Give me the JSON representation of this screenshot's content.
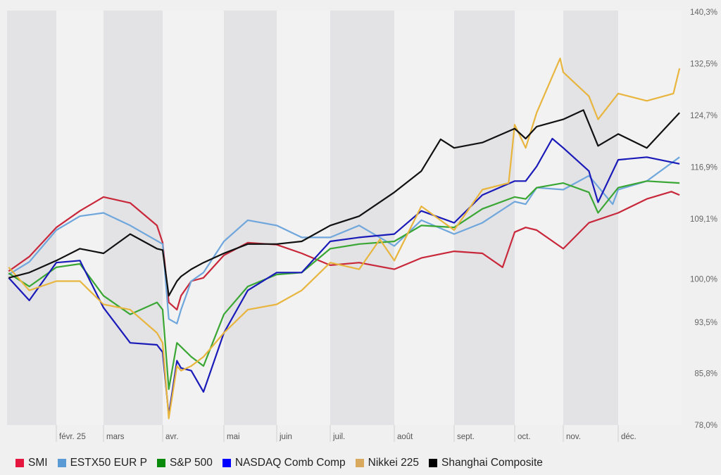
{
  "chart_data": {
    "type": "line",
    "title": "",
    "xlabel": "",
    "ylabel": "",
    "ylim": [
      78.0,
      140.3
    ],
    "y_ticks": [
      {
        "value": 140.3,
        "label": "140,3%"
      },
      {
        "value": 132.5,
        "label": "132,5%"
      },
      {
        "value": 124.7,
        "label": "124,7%"
      },
      {
        "value": 116.9,
        "label": "116,9%"
      },
      {
        "value": 109.1,
        "label": "109,1%"
      },
      {
        "value": 100.0,
        "label": "100,0%"
      },
      {
        "value": 93.5,
        "label": "93,5%"
      },
      {
        "value": 85.8,
        "label": "85,8%"
      },
      {
        "value": 78.0,
        "label": "78,0%"
      }
    ],
    "x_ticks": [
      {
        "date": "2025-02-01",
        "label": "févr. 25"
      },
      {
        "date": "2025-03-01",
        "label": "mars"
      },
      {
        "date": "2025-04-01",
        "label": "avr."
      },
      {
        "date": "2025-05-01",
        "label": "mai"
      },
      {
        "date": "2025-06-01",
        "label": "juin"
      },
      {
        "date": "2025-07-01",
        "label": "juil."
      },
      {
        "date": "2025-08-01",
        "label": "août"
      },
      {
        "date": "2025-09-01",
        "label": "sept."
      },
      {
        "date": "2025-10-01",
        "label": "oct."
      },
      {
        "date": "2025-11-01",
        "label": "nov."
      },
      {
        "date": "2025-12-01",
        "label": "déc."
      }
    ],
    "shaded_months": [
      "2025-01",
      "2025-03",
      "2025-05",
      "2025-07",
      "2025-09",
      "2025-11"
    ],
    "grid": false,
    "legend_position": "bottom",
    "series": [
      {
        "name": "SMI",
        "color": "#c8283a",
        "legend_color": "#e5173f",
        "points": [
          [
            "2025-01-02",
            101.2
          ],
          [
            "2025-01-15",
            103.4
          ],
          [
            "2025-02-01",
            107.8
          ],
          [
            "2025-02-15",
            110.3
          ],
          [
            "2025-03-01",
            112.4
          ],
          [
            "2025-03-15",
            111.5
          ],
          [
            "2025-03-29",
            108.1
          ],
          [
            "2025-04-01",
            105.5
          ],
          [
            "2025-04-04",
            96.5
          ],
          [
            "2025-04-08",
            95.4
          ],
          [
            "2025-04-10",
            97.5
          ],
          [
            "2025-04-15",
            99.7
          ],
          [
            "2025-04-21",
            100.2
          ],
          [
            "2025-05-01",
            103.6
          ],
          [
            "2025-05-15",
            105.5
          ],
          [
            "2025-06-01",
            105.2
          ],
          [
            "2025-06-15",
            103.9
          ],
          [
            "2025-07-01",
            102.1
          ],
          [
            "2025-07-15",
            102.5
          ],
          [
            "2025-08-01",
            101.5
          ],
          [
            "2025-08-15",
            103.2
          ],
          [
            "2025-09-01",
            104.2
          ],
          [
            "2025-09-15",
            103.9
          ],
          [
            "2025-09-25",
            101.8
          ],
          [
            "2025-10-01",
            107.1
          ],
          [
            "2025-10-08",
            107.8
          ],
          [
            "2025-10-15",
            107.4
          ],
          [
            "2025-11-01",
            104.6
          ],
          [
            "2025-11-15",
            108.5
          ],
          [
            "2025-12-01",
            110.0
          ],
          [
            "2025-12-15",
            112.1
          ],
          [
            "2025-12-27",
            113.2
          ],
          [
            "2025-12-31",
            112.7
          ]
        ]
      },
      {
        "name": "ESTX50 EUR P",
        "color": "#6fa6dc",
        "legend_color": "#5b9bd5",
        "points": [
          [
            "2025-01-02",
            100.7
          ],
          [
            "2025-01-15",
            102.6
          ],
          [
            "2025-02-01",
            107.4
          ],
          [
            "2025-02-15",
            109.5
          ],
          [
            "2025-03-01",
            110.0
          ],
          [
            "2025-03-15",
            108.1
          ],
          [
            "2025-04-01",
            105.3
          ],
          [
            "2025-04-04",
            94.0
          ],
          [
            "2025-04-08",
            93.3
          ],
          [
            "2025-04-10",
            95.4
          ],
          [
            "2025-04-15",
            99.7
          ],
          [
            "2025-04-21",
            101.0
          ],
          [
            "2025-05-01",
            105.7
          ],
          [
            "2025-05-15",
            108.9
          ],
          [
            "2025-06-01",
            108.1
          ],
          [
            "2025-06-15",
            106.3
          ],
          [
            "2025-07-01",
            106.3
          ],
          [
            "2025-07-15",
            108.1
          ],
          [
            "2025-08-01",
            105.0
          ],
          [
            "2025-08-15",
            108.9
          ],
          [
            "2025-09-01",
            106.8
          ],
          [
            "2025-09-15",
            108.5
          ],
          [
            "2025-10-01",
            111.7
          ],
          [
            "2025-10-08",
            111.3
          ],
          [
            "2025-10-15",
            113.8
          ],
          [
            "2025-11-01",
            113.5
          ],
          [
            "2025-11-15",
            115.6
          ],
          [
            "2025-11-28",
            111.3
          ],
          [
            "2025-12-01",
            113.5
          ],
          [
            "2025-12-15",
            114.8
          ],
          [
            "2025-12-31",
            118.4
          ]
        ]
      },
      {
        "name": "S&P 500",
        "color": "#3aa634",
        "legend_color": "#0a8a0a",
        "points": [
          [
            "2025-01-02",
            100.9
          ],
          [
            "2025-01-15",
            98.9
          ],
          [
            "2025-02-01",
            101.8
          ],
          [
            "2025-02-15",
            102.3
          ],
          [
            "2025-03-01",
            97.5
          ],
          [
            "2025-03-15",
            94.7
          ],
          [
            "2025-03-29",
            96.5
          ],
          [
            "2025-04-01",
            95.4
          ],
          [
            "2025-04-04",
            83.4
          ],
          [
            "2025-04-08",
            90.4
          ],
          [
            "2025-04-10",
            89.8
          ],
          [
            "2025-04-15",
            88.3
          ],
          [
            "2025-04-21",
            86.9
          ],
          [
            "2025-05-01",
            94.7
          ],
          [
            "2025-05-15",
            98.9
          ],
          [
            "2025-06-01",
            100.7
          ],
          [
            "2025-06-15",
            101.0
          ],
          [
            "2025-07-01",
            104.6
          ],
          [
            "2025-07-15",
            105.3
          ],
          [
            "2025-08-01",
            105.7
          ],
          [
            "2025-08-15",
            108.1
          ],
          [
            "2025-09-01",
            107.8
          ],
          [
            "2025-09-15",
            110.6
          ],
          [
            "2025-10-01",
            112.4
          ],
          [
            "2025-10-08",
            112.1
          ],
          [
            "2025-10-15",
            113.8
          ],
          [
            "2025-11-01",
            114.5
          ],
          [
            "2025-11-15",
            113.1
          ],
          [
            "2025-11-20",
            110.0
          ],
          [
            "2025-12-01",
            113.8
          ],
          [
            "2025-12-15",
            114.8
          ],
          [
            "2025-12-31",
            114.5
          ]
        ]
      },
      {
        "name": "NASDAQ Comb Comp",
        "color": "#1a1ab8",
        "legend_color": "#0000ff",
        "points": [
          [
            "2025-01-02",
            100.2
          ],
          [
            "2025-01-15",
            96.8
          ],
          [
            "2025-02-01",
            102.5
          ],
          [
            "2025-02-15",
            102.8
          ],
          [
            "2025-03-01",
            95.7
          ],
          [
            "2025-03-15",
            90.4
          ],
          [
            "2025-03-29",
            90.1
          ],
          [
            "2025-04-01",
            89.0
          ],
          [
            "2025-04-04",
            79.5
          ],
          [
            "2025-04-08",
            87.7
          ],
          [
            "2025-04-10",
            86.6
          ],
          [
            "2025-04-15",
            86.2
          ],
          [
            "2025-04-21",
            83.0
          ],
          [
            "2025-05-01",
            91.9
          ],
          [
            "2025-05-15",
            98.3
          ],
          [
            "2025-06-01",
            101.0
          ],
          [
            "2025-06-15",
            101.0
          ],
          [
            "2025-07-01",
            105.7
          ],
          [
            "2025-07-15",
            106.3
          ],
          [
            "2025-08-01",
            106.8
          ],
          [
            "2025-08-15",
            110.3
          ],
          [
            "2025-09-01",
            108.5
          ],
          [
            "2025-09-15",
            112.7
          ],
          [
            "2025-10-01",
            114.8
          ],
          [
            "2025-10-08",
            114.8
          ],
          [
            "2025-10-15",
            117.0
          ],
          [
            "2025-10-25",
            121.2
          ],
          [
            "2025-11-01",
            119.8
          ],
          [
            "2025-11-15",
            116.3
          ],
          [
            "2025-11-20",
            111.6
          ],
          [
            "2025-12-01",
            118.0
          ],
          [
            "2025-12-15",
            118.4
          ],
          [
            "2025-12-31",
            117.4
          ]
        ]
      },
      {
        "name": "Nikkei 225",
        "color": "#e8b53e",
        "legend_color": "#d9a95e",
        "points": [
          [
            "2025-01-02",
            101.8
          ],
          [
            "2025-01-15",
            98.3
          ],
          [
            "2025-02-01",
            99.7
          ],
          [
            "2025-02-15",
            99.7
          ],
          [
            "2025-03-01",
            96.2
          ],
          [
            "2025-03-15",
            95.4
          ],
          [
            "2025-03-29",
            91.9
          ],
          [
            "2025-04-01",
            90.4
          ],
          [
            "2025-04-04",
            79.0
          ],
          [
            "2025-04-08",
            86.9
          ],
          [
            "2025-04-10",
            86.2
          ],
          [
            "2025-04-15",
            86.9
          ],
          [
            "2025-04-21",
            88.3
          ],
          [
            "2025-05-01",
            91.9
          ],
          [
            "2025-05-15",
            95.4
          ],
          [
            "2025-06-01",
            96.2
          ],
          [
            "2025-06-15",
            98.3
          ],
          [
            "2025-07-01",
            102.5
          ],
          [
            "2025-07-15",
            101.5
          ],
          [
            "2025-07-25",
            106.0
          ],
          [
            "2025-08-01",
            102.8
          ],
          [
            "2025-08-15",
            111.0
          ],
          [
            "2025-09-01",
            107.4
          ],
          [
            "2025-09-15",
            113.5
          ],
          [
            "2025-09-28",
            114.5
          ],
          [
            "2025-10-01",
            123.3
          ],
          [
            "2025-10-08",
            119.8
          ],
          [
            "2025-10-15",
            125.1
          ],
          [
            "2025-10-30",
            133.3
          ],
          [
            "2025-11-01",
            131.2
          ],
          [
            "2025-11-15",
            127.6
          ],
          [
            "2025-11-20",
            124.1
          ],
          [
            "2025-12-01",
            128.0
          ],
          [
            "2025-12-15",
            126.9
          ],
          [
            "2025-12-28",
            128.0
          ],
          [
            "2025-12-31",
            131.8
          ]
        ]
      },
      {
        "name": "Shanghai Composite",
        "color": "#111111",
        "legend_color": "#000000",
        "points": [
          [
            "2025-01-02",
            100.2
          ],
          [
            "2025-01-15",
            101.0
          ],
          [
            "2025-02-01",
            102.8
          ],
          [
            "2025-02-15",
            104.6
          ],
          [
            "2025-03-01",
            103.9
          ],
          [
            "2025-03-15",
            106.8
          ],
          [
            "2025-03-29",
            104.6
          ],
          [
            "2025-04-01",
            104.4
          ],
          [
            "2025-04-04",
            97.5
          ],
          [
            "2025-04-08",
            99.7
          ],
          [
            "2025-04-10",
            100.4
          ],
          [
            "2025-04-15",
            101.5
          ],
          [
            "2025-04-21",
            102.5
          ],
          [
            "2025-05-01",
            103.9
          ],
          [
            "2025-05-15",
            105.3
          ],
          [
            "2025-06-01",
            105.3
          ],
          [
            "2025-06-15",
            105.7
          ],
          [
            "2025-07-01",
            108.1
          ],
          [
            "2025-07-15",
            109.5
          ],
          [
            "2025-08-01",
            113.1
          ],
          [
            "2025-08-15",
            116.3
          ],
          [
            "2025-08-25",
            121.1
          ],
          [
            "2025-09-01",
            119.8
          ],
          [
            "2025-09-15",
            120.6
          ],
          [
            "2025-10-01",
            122.7
          ],
          [
            "2025-10-08",
            121.2
          ],
          [
            "2025-10-15",
            123.0
          ],
          [
            "2025-11-01",
            124.1
          ],
          [
            "2025-11-12",
            125.5
          ],
          [
            "2025-11-20",
            120.1
          ],
          [
            "2025-12-01",
            121.9
          ],
          [
            "2025-12-15",
            119.8
          ],
          [
            "2025-12-31",
            125.1
          ]
        ]
      }
    ]
  }
}
